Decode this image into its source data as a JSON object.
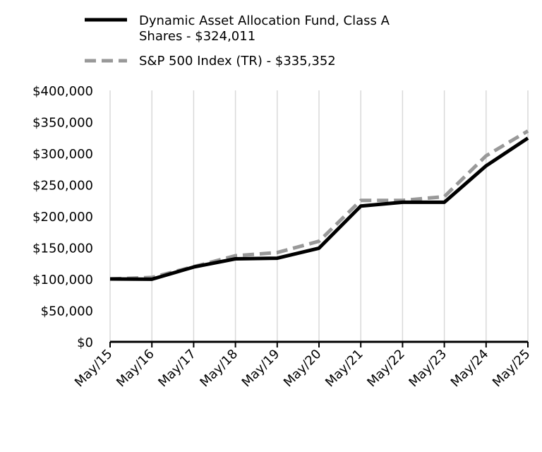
{
  "chart_data": {
    "type": "line",
    "categories": [
      "May/15",
      "May/16",
      "May/17",
      "May/18",
      "May/19",
      "May/20",
      "May/21",
      "May/22",
      "May/23",
      "May/24",
      "May/25"
    ],
    "series": [
      {
        "name": "Dynamic Asset Allocation Fund, Class A Shares - $324,011",
        "name_lines": [
          "Dynamic Asset Allocation Fund, Class A",
          "Shares - $324,011"
        ],
        "values": [
          100000,
          99500,
          119000,
          132000,
          133000,
          149000,
          216000,
          222000,
          222000,
          280000,
          324011
        ],
        "color": "#000000",
        "style": "solid"
      },
      {
        "name": "S&P 500 Index (TR) - $335,352",
        "name_lines": [
          "S&P 500 Index (TR) - $335,352"
        ],
        "values": [
          100000,
          102500,
          119500,
          137000,
          142000,
          160000,
          225000,
          225000,
          231000,
          296000,
          335352
        ],
        "color": "#999999",
        "style": "dashed"
      }
    ],
    "y_ticks": [
      "$400,000",
      "$350,000",
      "$300,000",
      "$250,000",
      "$200,000",
      "$150,000",
      "$100,000",
      "$50,000",
      "$0"
    ],
    "ylim": [
      0,
      400000
    ],
    "grid": "vertical",
    "legend": "top"
  }
}
